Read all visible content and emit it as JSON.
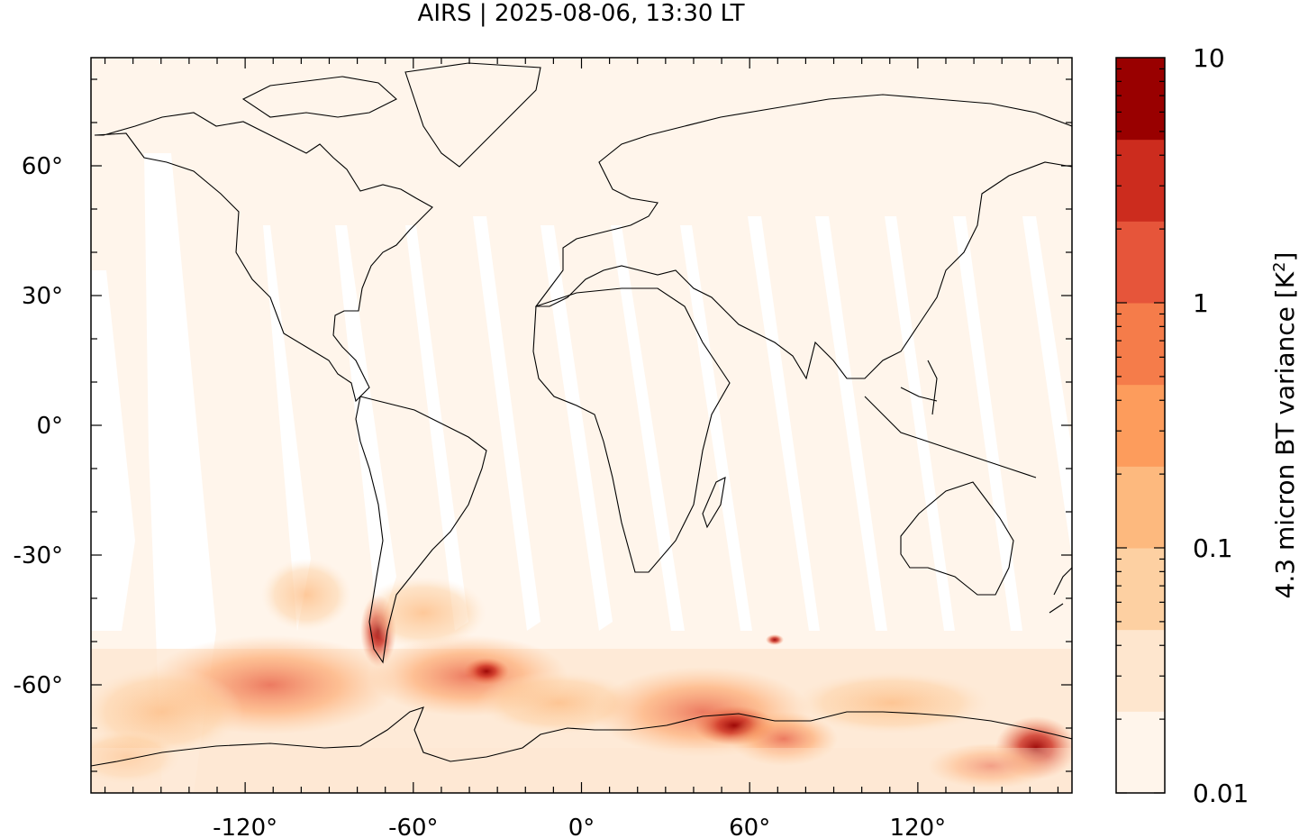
{
  "title": "AIRS | 2025-08-06, 13:30 LT",
  "map": {
    "projection": "equirectangular",
    "lon_range": [
      -175,
      175
    ],
    "lat_range": [
      -85,
      85
    ],
    "x_ticks": [
      {
        "value": -120,
        "label": "-120°"
      },
      {
        "value": -60,
        "label": "-60°"
      },
      {
        "value": 0,
        "label": "0°"
      },
      {
        "value": 60,
        "label": "60°"
      },
      {
        "value": 120,
        "label": "120°"
      }
    ],
    "y_ticks": [
      {
        "value": 60,
        "label": "60°"
      },
      {
        "value": 30,
        "label": "30°"
      },
      {
        "value": 0,
        "label": "0°"
      },
      {
        "value": -30,
        "label": "-30°"
      },
      {
        "value": -60,
        "label": "-60°"
      }
    ],
    "background_color": "#fff5eb",
    "gap_color": "#ffffff"
  },
  "colorbar": {
    "label": "4.3 micron BT variance [K",
    "label_superscript": "2",
    "label_suffix": "]",
    "scale": "log",
    "range": [
      0.01,
      10
    ],
    "ticks": [
      {
        "value": 10,
        "label": "10"
      },
      {
        "value": 1,
        "label": "1"
      },
      {
        "value": 0.1,
        "label": "0.1"
      },
      {
        "value": 0.01,
        "label": "0.01"
      }
    ],
    "colors": [
      "#fff5eb",
      "#fee6ce",
      "#fdd0a2",
      "#fdb97e",
      "#fd9c5c",
      "#f57c4a",
      "#e6553a",
      "#cc2c1e",
      "#990000"
    ]
  }
}
